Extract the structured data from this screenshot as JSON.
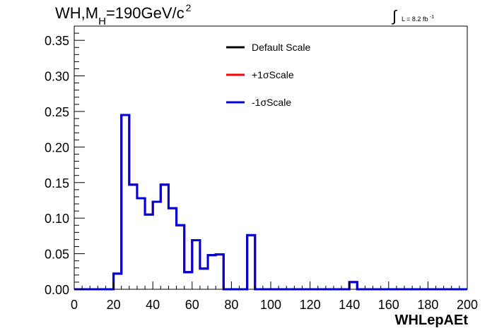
{
  "header": {
    "title_main": "WH,M",
    "title_sub": "H",
    "title_rest": "=190GeV/c",
    "title_sup": "2",
    "lumi_integral": "∫",
    "lumi_text": "L = 8.2 fb",
    "lumi_sup": "-1"
  },
  "chart_data": {
    "type": "line",
    "style": "step-histogram",
    "xlabel": "WHLepAEt",
    "ylabel": "",
    "xlim": [
      0,
      200
    ],
    "ylim": [
      0,
      0.37
    ],
    "x_ticks": [
      0,
      20,
      40,
      60,
      80,
      100,
      120,
      140,
      160,
      180,
      200
    ],
    "y_ticks": [
      "0.00",
      "0.05",
      "0.10",
      "0.15",
      "0.20",
      "0.25",
      "0.30",
      "0.35"
    ],
    "grid": false,
    "legend_position": "top-center",
    "bin_edges": [
      0,
      4,
      8,
      12,
      16,
      20,
      24,
      28,
      32,
      36,
      40,
      44,
      48,
      52,
      56,
      60,
      64,
      68,
      72,
      76,
      80,
      84,
      88,
      92,
      96,
      100,
      104,
      108,
      112,
      116,
      120,
      124,
      128,
      132,
      136,
      140,
      144,
      148,
      152,
      156,
      160,
      164,
      168,
      172,
      176,
      180,
      184,
      188,
      192,
      196,
      200
    ],
    "series": [
      {
        "name": "Default Scale",
        "color": "#000000",
        "values": [
          0,
          0,
          0,
          0,
          0,
          0.022,
          0.245,
          0.147,
          0.128,
          0.105,
          0.123,
          0.147,
          0.114,
          0.09,
          0.024,
          0.069,
          0.029,
          0.048,
          0.049,
          0,
          0,
          0,
          0.076,
          0,
          0,
          0,
          0,
          0,
          0,
          0,
          0,
          0,
          0,
          0,
          0,
          0.01,
          0,
          0,
          0,
          0,
          0,
          0,
          0,
          0,
          0,
          0,
          0,
          0,
          0,
          0
        ]
      },
      {
        "name": "+1σScale",
        "color": "#ff0000",
        "values": [
          0,
          0,
          0,
          0,
          0,
          0.022,
          0.245,
          0.147,
          0.128,
          0.105,
          0.123,
          0.147,
          0.114,
          0.09,
          0.024,
          0.069,
          0.029,
          0.048,
          0.049,
          0,
          0,
          0,
          0.076,
          0,
          0,
          0,
          0,
          0,
          0,
          0,
          0,
          0,
          0,
          0,
          0,
          0.01,
          0,
          0,
          0,
          0,
          0,
          0,
          0,
          0,
          0,
          0,
          0,
          0,
          0,
          0
        ]
      },
      {
        "name": "-1σScale",
        "color": "#0000dd",
        "values": [
          0,
          0,
          0,
          0,
          0,
          0.022,
          0.245,
          0.147,
          0.128,
          0.105,
          0.123,
          0.147,
          0.114,
          0.09,
          0.024,
          0.069,
          0.029,
          0.048,
          0.049,
          0,
          0,
          0,
          0.076,
          0,
          0,
          0,
          0,
          0,
          0,
          0,
          0,
          0,
          0,
          0,
          0,
          0.01,
          0,
          0,
          0,
          0,
          0,
          0,
          0,
          0,
          0,
          0,
          0,
          0,
          0,
          0
        ]
      }
    ]
  }
}
